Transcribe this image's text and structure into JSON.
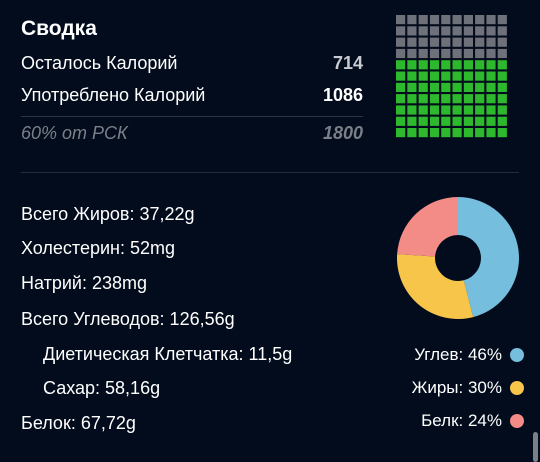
{
  "summary": {
    "title": "Сводка",
    "remaining_label": "Осталось Калорий",
    "remaining_value": "714",
    "consumed_label": "Употреблено Калорий",
    "consumed_value": "1086",
    "percent_label": "60% от РСК",
    "goal_value": "1800"
  },
  "waffle": {
    "rows": 11,
    "cols": 10,
    "filled_rows": 7,
    "filled_color": "#2db82d",
    "empty_color": "#6e717a"
  },
  "nutrients": {
    "fat": "Всего Жиров: 37,22g",
    "cholesterol": "Холестерин: 52mg",
    "sodium": "Натрий: 238mg",
    "carbs": "Всего Углеводов: 126,56g",
    "fiber": "Диетическая Клетчатка: 11,5g",
    "sugar": "Сахар: 58,16g",
    "protein": "Белок: 67,72g"
  },
  "chart_data": {
    "type": "pie",
    "series": [
      {
        "name": "Углев",
        "value": 46,
        "color": "#75bedd"
      },
      {
        "name": "Жиры",
        "value": 30,
        "color": "#f8c54b"
      },
      {
        "name": "Белк",
        "value": 24,
        "color": "#f38c86"
      }
    ]
  },
  "legend": {
    "carbs": "Углев: 46%",
    "fat": "Жиры: 30%",
    "protein": "Белк: 24%"
  },
  "colors": {
    "background": "#030c1c",
    "separator": "#2b3342"
  }
}
